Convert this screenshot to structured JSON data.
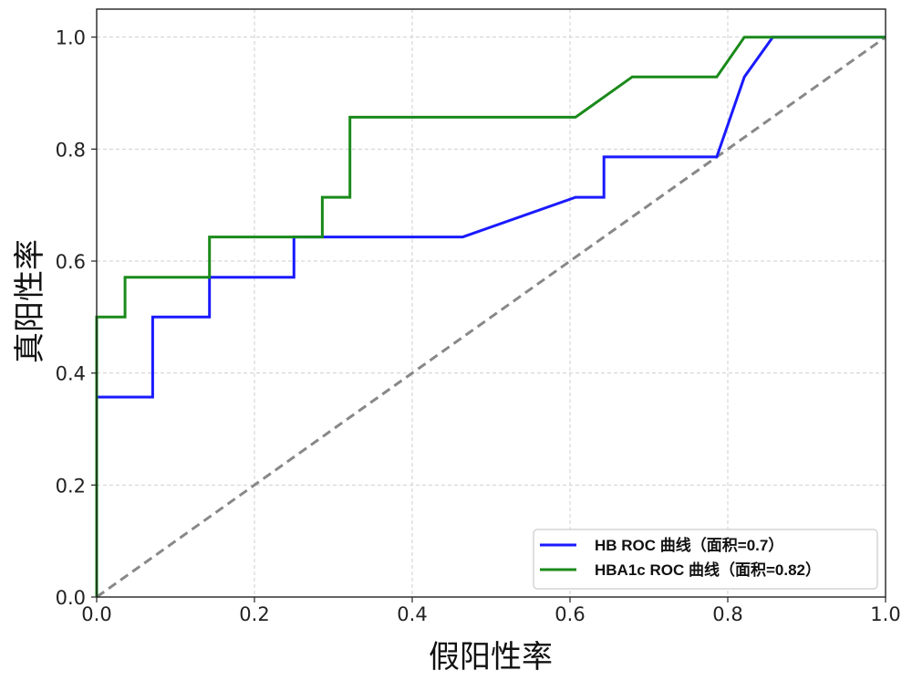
{
  "chart_data": {
    "type": "line",
    "xlabel": "假阳性率",
    "ylabel": "真阳性率",
    "xlim": [
      0,
      1
    ],
    "ylim": [
      0,
      1.05
    ],
    "xticks": [
      "0.0",
      "0.2",
      "0.4",
      "0.6",
      "0.8",
      "1.0"
    ],
    "yticks": [
      "0.0",
      "0.2",
      "0.4",
      "0.6",
      "0.8",
      "1.0"
    ],
    "grid": true,
    "legend_position": "bottom-right",
    "series": [
      {
        "name": "HB ROC 曲线（面积=0.7）",
        "color": "#1a1aff",
        "x": [
          0,
          0,
          0.071,
          0.071,
          0.143,
          0.143,
          0.25,
          0.25,
          0.464,
          0.607,
          0.643,
          0.643,
          0.786,
          0.821,
          0.857,
          1.0
        ],
        "y": [
          0,
          0.357,
          0.357,
          0.5,
          0.5,
          0.571,
          0.571,
          0.643,
          0.643,
          0.714,
          0.714,
          0.786,
          0.786,
          0.929,
          1.0,
          1.0
        ]
      },
      {
        "name": "HBA1c ROC 曲线（面积=0.82）",
        "color": "#1a8a1a",
        "x": [
          0,
          0,
          0.036,
          0.036,
          0.143,
          0.143,
          0.286,
          0.286,
          0.321,
          0.321,
          0.607,
          0.679,
          0.786,
          0.821,
          1.0
        ],
        "y": [
          0,
          0.5,
          0.5,
          0.571,
          0.571,
          0.643,
          0.643,
          0.714,
          0.714,
          0.857,
          0.857,
          0.929,
          0.929,
          1.0,
          1.0
        ]
      }
    ],
    "reference_line": {
      "color": "#888888",
      "x": [
        0,
        1
      ],
      "y": [
        0,
        1
      ]
    }
  }
}
